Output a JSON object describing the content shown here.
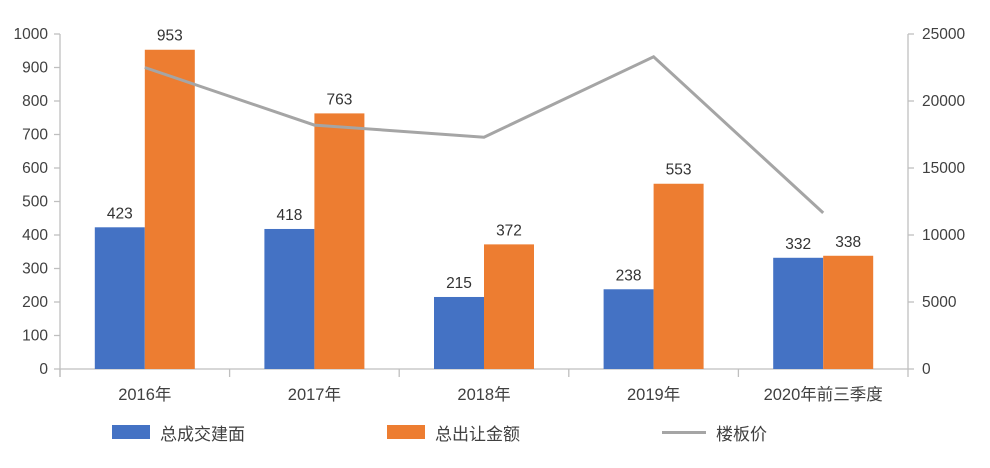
{
  "chart_data": {
    "type": "combo-bar-line",
    "title": "",
    "categories": [
      "2016年",
      "2017年",
      "2018年",
      "2019年",
      "2020年前三季度"
    ],
    "series": [
      {
        "name": "总成交建面",
        "chart": "bar",
        "axis": "left",
        "color": "#4472C4",
        "values": [
          423,
          418,
          215,
          238,
          332
        ]
      },
      {
        "name": "总出让金额",
        "chart": "bar",
        "axis": "left",
        "color": "#ED7D31",
        "values": [
          953,
          763,
          372,
          553,
          338
        ]
      },
      {
        "name": "楼板价",
        "chart": "line",
        "axis": "right",
        "color": "#A5A5A5",
        "values": [
          22500,
          18200,
          17300,
          23300,
          11650
        ]
      }
    ],
    "left_axis": {
      "min": 0,
      "max": 1000,
      "ticks": [
        0,
        100,
        200,
        300,
        400,
        500,
        600,
        700,
        800,
        900,
        1000
      ]
    },
    "right_axis": {
      "min": 0,
      "max": 25000,
      "ticks": [
        0,
        5000,
        10000,
        15000,
        20000,
        25000
      ]
    },
    "legend": {
      "position": "bottom",
      "items": [
        "总成交建面",
        "总出让金额",
        "楼板价"
      ]
    },
    "grid": false,
    "data_labels_on_bars": true,
    "style": {
      "axis_color": "#BFBFBF",
      "text_color": "#404040",
      "background": "#FFFFFF"
    }
  }
}
